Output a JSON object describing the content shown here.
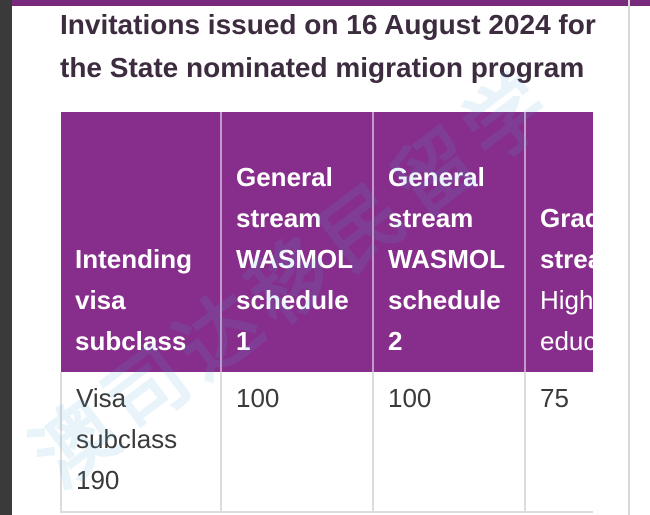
{
  "heading": "Invitations issued on 16 August 2024 for the State nominated migration program",
  "table": {
    "headers": [
      {
        "bold": "Intending visa subclass",
        "normal": ""
      },
      {
        "bold": "General stream WASMOL schedule 1",
        "normal": ""
      },
      {
        "bold": "General stream WASMOL schedule 2",
        "normal": ""
      },
      {
        "bold": "Graduate stream",
        "normal": "Higher education"
      }
    ],
    "rows": [
      [
        "Visa subclass 190",
        "100",
        "100",
        "75"
      ]
    ]
  },
  "watermark_text": "澳司达移民留学",
  "colors": {
    "header_bg": "#872d8b",
    "accent_bar": "#7a2a7c",
    "heading_text": "#3d2b3f"
  }
}
